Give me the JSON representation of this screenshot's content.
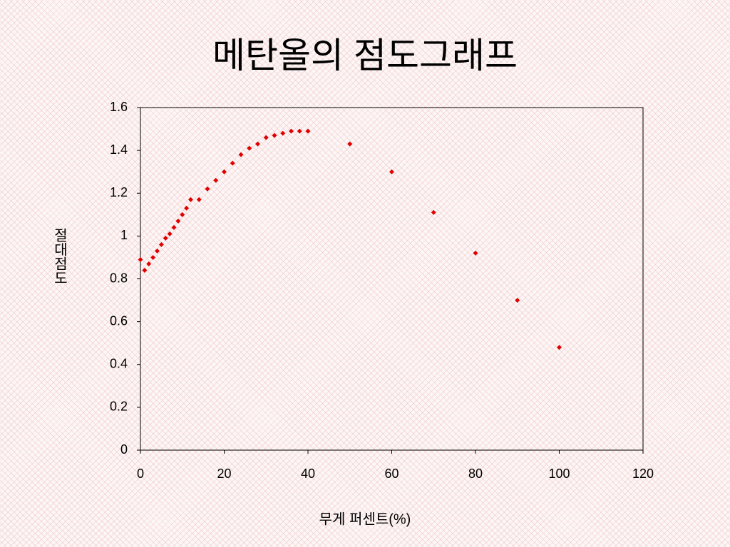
{
  "chart_data": {
    "type": "scatter",
    "title": "메탄올의 점도그래프",
    "x_label": "무게 퍼센트(%)",
    "y_label": "절대점도",
    "color": "#e00000",
    "x": [
      0,
      1,
      2,
      3,
      4,
      5,
      6,
      7,
      8,
      9,
      10,
      11,
      12,
      14,
      16,
      18,
      20,
      22,
      24,
      26,
      28,
      30,
      32,
      34,
      36,
      38,
      40,
      50,
      60,
      70,
      80,
      90,
      100
    ],
    "values": [
      0.89,
      0.84,
      0.87,
      0.9,
      0.93,
      0.96,
      0.99,
      1.01,
      1.04,
      1.07,
      1.1,
      1.13,
      1.17,
      1.17,
      1.22,
      1.26,
      1.3,
      1.34,
      1.38,
      1.41,
      1.43,
      1.46,
      1.47,
      1.48,
      1.49,
      1.49,
      1.49,
      1.43,
      1.3,
      1.11,
      0.92,
      0.7,
      0.48
    ],
    "xlim": [
      0,
      120
    ],
    "xticks": [
      0,
      20,
      40,
      60,
      80,
      100,
      120
    ],
    "ylim": [
      0,
      1.6
    ],
    "yticks": [
      0,
      0.2,
      0.4,
      0.6,
      0.8,
      1,
      1.2,
      1.4,
      1.6
    ]
  }
}
